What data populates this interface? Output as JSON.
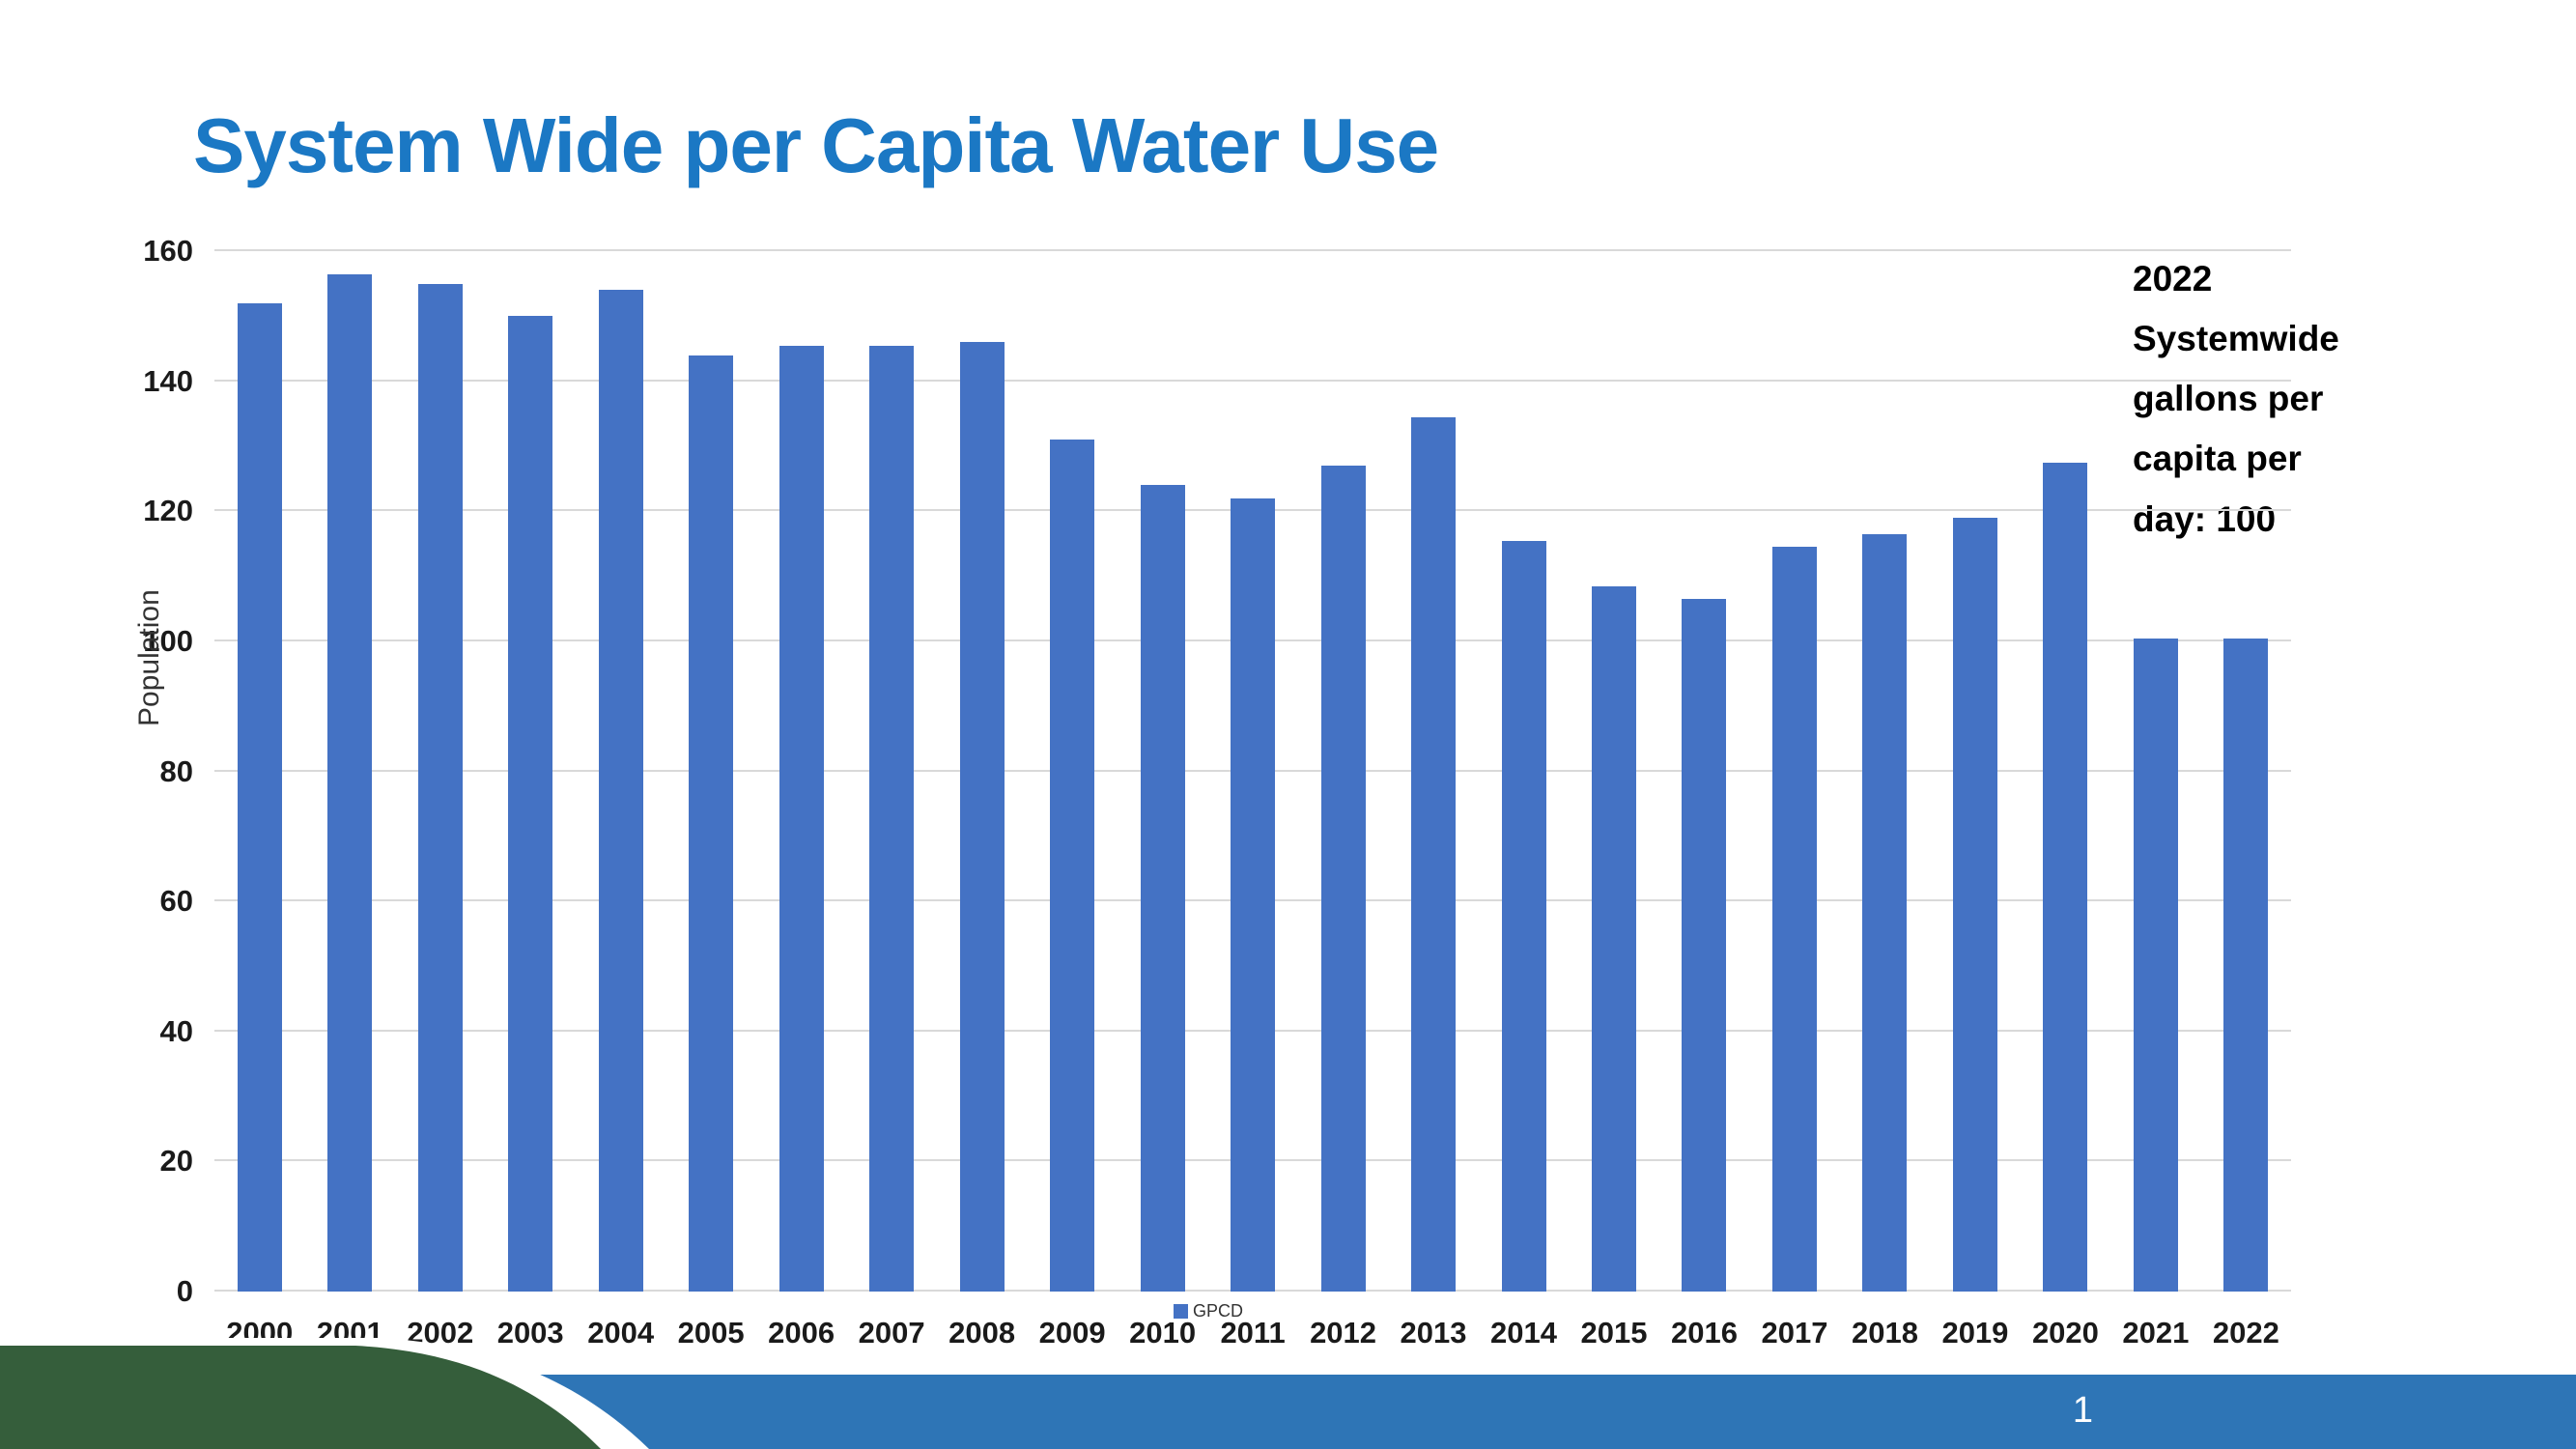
{
  "title": "System Wide per Capita Water Use",
  "annotation": "2022\nSystemwide\ngallons per\ncapita per\nday: 100",
  "footer": {
    "page_number": "1"
  },
  "colors": {
    "bar": "#4472C4",
    "title": "#1B78C4",
    "footer_bar": "#2E75B6",
    "green_accent": "#355E3B",
    "gridline": "#D9D9D9"
  },
  "chart_data": {
    "type": "bar",
    "title": "System Wide per Capita Water Use",
    "xlabel": "",
    "ylabel": "Population",
    "legend": "GPCD",
    "ylim": [
      0,
      160
    ],
    "yticks": [
      0,
      20,
      40,
      60,
      80,
      100,
      120,
      140,
      160
    ],
    "grid": true,
    "legend_position": "bottom",
    "categories": [
      "2000",
      "2001",
      "2002",
      "2003",
      "2004",
      "2005",
      "2006",
      "2007",
      "2008",
      "2009",
      "2010",
      "2011",
      "2012",
      "2013",
      "2014",
      "2015",
      "2016",
      "2017",
      "2018",
      "2019",
      "2020",
      "2021",
      "2022"
    ],
    "values": [
      152,
      156.5,
      155,
      150,
      154,
      144,
      145.5,
      145.5,
      146,
      131,
      124,
      122,
      127,
      134.5,
      115.5,
      108.5,
      106.5,
      114.5,
      116.5,
      119,
      127.5,
      100.5,
      100.5
    ]
  }
}
